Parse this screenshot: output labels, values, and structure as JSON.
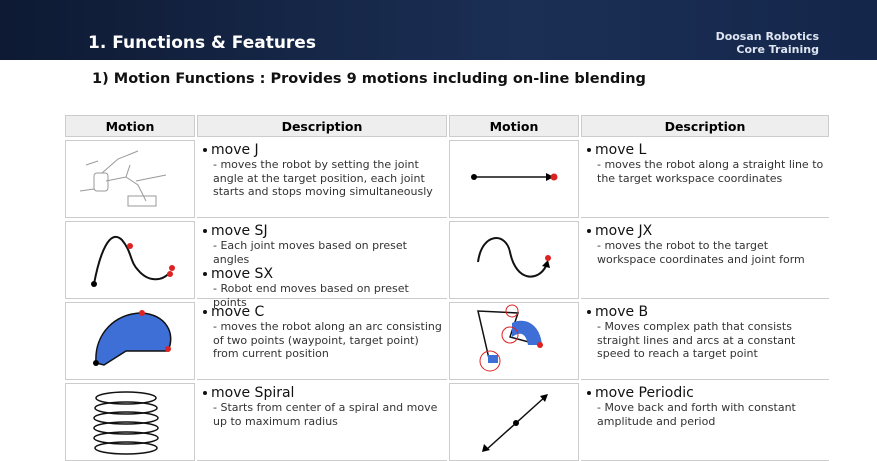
{
  "header": {
    "title": "1. Functions & Features",
    "brand": [
      "Doosan Robotics",
      "Core Training"
    ]
  },
  "subtitle": "1) Motion Functions : Provides 9 motions including on-line blending",
  "table": {
    "headers": [
      "Motion",
      "Description",
      "Motion",
      "Description"
    ],
    "rows": [
      [
        {
          "items": [
            {
              "title": "move J",
              "text": "- moves the robot by setting the joint angle at the target position, each joint starts and stops moving simultaneously"
            }
          ]
        },
        {
          "items": [
            {
              "title": "move L",
              "text": "- moves the robot along a straight line to the target workspace coordinates"
            }
          ]
        }
      ],
      [
        {
          "items": [
            {
              "title": "move SJ",
              "text": "- Each joint moves based on preset angles"
            },
            {
              "title": "move SX",
              "text": "- Robot end moves based on preset points"
            }
          ]
        },
        {
          "items": [
            {
              "title": "move JX",
              "text": "- moves the robot to the target workspace coordinates and joint form"
            }
          ]
        }
      ],
      [
        {
          "items": [
            {
              "title": "move C",
              "text": "- moves the robot along an arc consisting of two points (waypoint, target point) from current position"
            }
          ]
        },
        {
          "items": [
            {
              "title": "move B",
              "text": "- Moves complex path that consists straight lines and arcs at a constant speed to reach a target point"
            }
          ]
        }
      ],
      [
        {
          "items": [
            {
              "title": "move Spiral",
              "text": "- Starts from center of a spiral and move up to maximum radius"
            }
          ]
        },
        {
          "items": [
            {
              "title": "move Periodic",
              "text": "- Move back and forth with constant amplitude and period"
            }
          ]
        }
      ]
    ]
  }
}
